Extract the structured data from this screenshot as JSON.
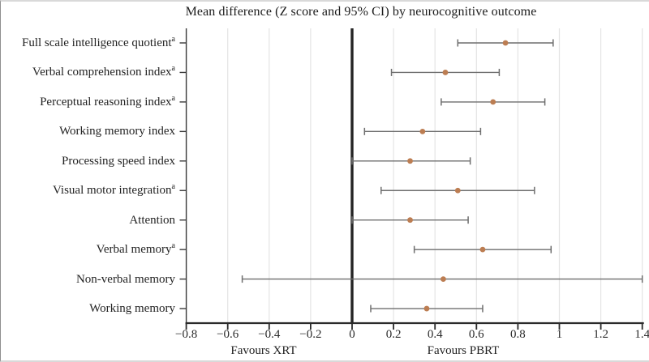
{
  "chart_data": {
    "type": "scatter",
    "variant": "forest-plot",
    "title": "Mean difference (Z score and 95% CI) by neurocognitive outcome",
    "x_axis": {
      "range": [
        -0.8,
        1.4
      ],
      "ticks": [
        -0.8,
        -0.6,
        -0.4,
        -0.2,
        0,
        0.2,
        0.4,
        0.6,
        0.8,
        1,
        1.2,
        1.4
      ],
      "tick_labels": [
        "−0.8",
        "−0.6",
        "−0.4",
        "−0.2",
        "0",
        "0.2",
        "0.4",
        "0.6",
        "0.8",
        "1",
        "1.2",
        "1.4"
      ],
      "zero_reference": 0,
      "label_left": "Favours XRT",
      "label_right": "Favours PBRT"
    },
    "grid": true,
    "legend": null,
    "rows": [
      {
        "label": "Full scale intelligence quotient",
        "superscript": "a",
        "estimate": 0.74,
        "ci_low": 0.51,
        "ci_high": 0.97
      },
      {
        "label": "Verbal comprehension index",
        "superscript": "a",
        "estimate": 0.45,
        "ci_low": 0.19,
        "ci_high": 0.71
      },
      {
        "label": "Perceptual reasoning index",
        "superscript": "a",
        "estimate": 0.68,
        "ci_low": 0.43,
        "ci_high": 0.93
      },
      {
        "label": "Working memory index",
        "superscript": "",
        "estimate": 0.34,
        "ci_low": 0.06,
        "ci_high": 0.62
      },
      {
        "label": "Processing speed index",
        "superscript": "",
        "estimate": 0.28,
        "ci_low": 0.0,
        "ci_high": 0.57
      },
      {
        "label": "Visual motor integration",
        "superscript": "a",
        "estimate": 0.51,
        "ci_low": 0.14,
        "ci_high": 0.88
      },
      {
        "label": "Attention",
        "superscript": "",
        "estimate": 0.28,
        "ci_low": 0.0,
        "ci_high": 0.56
      },
      {
        "label": "Verbal memory",
        "superscript": "a",
        "estimate": 0.63,
        "ci_low": 0.3,
        "ci_high": 0.96
      },
      {
        "label": "Non-verbal memory",
        "superscript": "",
        "estimate": 0.44,
        "ci_low": -0.53,
        "ci_high": 1.4
      },
      {
        "label": "Working memory",
        "superscript": "",
        "estimate": 0.36,
        "ci_low": 0.09,
        "ci_high": 0.63
      }
    ],
    "colors": {
      "point": "#bc7d52",
      "ci_line": "#6e6e6e",
      "zero_line": "#252525",
      "axis": "#2a2a2a",
      "gridline": "#e4e4e4",
      "text": "#1c1c1c"
    }
  }
}
